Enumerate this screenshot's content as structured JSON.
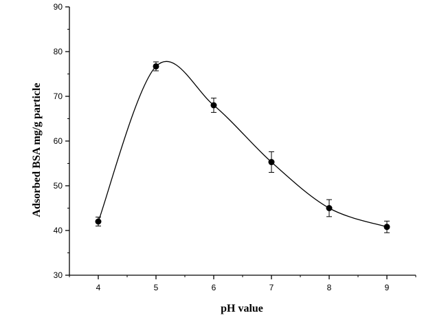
{
  "chart_data": {
    "type": "scatter",
    "title": "",
    "xlabel": "pH value",
    "ylabel": "Adsorbed BSA mg/g particle",
    "xlim": [
      3.5,
      9.5
    ],
    "ylim": [
      30,
      90
    ],
    "xticks": [
      4,
      5,
      6,
      7,
      8,
      9
    ],
    "yticks": [
      30,
      40,
      50,
      60,
      70,
      80,
      90
    ],
    "grid": false,
    "legend": "none",
    "series": [
      {
        "x": [
          4,
          5,
          6,
          7,
          8,
          9
        ],
        "y": [
          42.0,
          76.7,
          68.0,
          55.3,
          45.0,
          40.8
        ],
        "error": [
          1.0,
          1.0,
          1.6,
          2.3,
          1.9,
          1.3
        ],
        "color": "#000000",
        "marker": "filled-circle",
        "fit_curve": "smooth"
      }
    ]
  }
}
